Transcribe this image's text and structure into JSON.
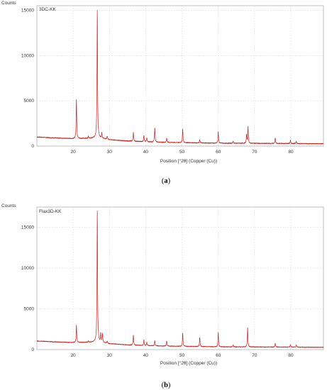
{
  "chart_data": [
    {
      "type": "line",
      "panel_caption": "(a)",
      "caption_open": "(",
      "caption_letter": "a",
      "caption_close": ")",
      "sample_label": "3DC-KK",
      "ylabel": "Counts",
      "xlabel": "Position [°2θ] (Copper (Cu))",
      "ylim": [
        0,
        15500
      ],
      "xlim": [
        10,
        89
      ],
      "yticks": [
        0,
        5000,
        10000,
        15000
      ],
      "xticks": [
        20,
        30,
        40,
        50,
        60,
        70,
        80
      ],
      "color": "#cc2222",
      "grid": "dashed",
      "baseline": [
        [
          10,
          1000
        ],
        [
          15,
          900
        ],
        [
          20,
          820
        ],
        [
          25,
          860
        ],
        [
          26,
          920
        ],
        [
          28,
          850
        ],
        [
          30,
          700
        ],
        [
          35,
          560
        ],
        [
          40,
          470
        ],
        [
          45,
          420
        ],
        [
          50,
          380
        ],
        [
          55,
          350
        ],
        [
          60,
          320
        ],
        [
          70,
          300
        ],
        [
          80,
          280
        ],
        [
          89,
          260
        ]
      ],
      "peaks": [
        {
          "x": 20.9,
          "y": 5200
        },
        {
          "x": 24.2,
          "y": 1100
        },
        {
          "x": 26.65,
          "y": 15000
        },
        {
          "x": 27.9,
          "y": 1450
        },
        {
          "x": 29.4,
          "y": 1100
        },
        {
          "x": 36.6,
          "y": 1550
        },
        {
          "x": 39.5,
          "y": 1200
        },
        {
          "x": 40.3,
          "y": 950
        },
        {
          "x": 42.5,
          "y": 2050
        },
        {
          "x": 45.8,
          "y": 900
        },
        {
          "x": 50.2,
          "y": 1900
        },
        {
          "x": 54.9,
          "y": 700
        },
        {
          "x": 60.0,
          "y": 1600
        },
        {
          "x": 64.1,
          "y": 550
        },
        {
          "x": 67.8,
          "y": 1300
        },
        {
          "x": 68.2,
          "y": 2100
        },
        {
          "x": 75.7,
          "y": 900
        },
        {
          "x": 79.9,
          "y": 650
        },
        {
          "x": 81.5,
          "y": 550
        }
      ]
    },
    {
      "type": "line",
      "panel_caption": "(b)",
      "caption_open": "(",
      "caption_letter": "b",
      "caption_close": ")",
      "sample_label": "Flax3D-KK",
      "ylabel": "Counts",
      "xlabel": "Position [°2θ] (Copper (Cu))",
      "ylim": [
        0,
        17500
      ],
      "xlim": [
        10,
        89
      ],
      "yticks": [
        0,
        5000,
        10000,
        15000
      ],
      "xticks": [
        20,
        30,
        40,
        50,
        60,
        70,
        80
      ],
      "color": "#cc2222",
      "grid": "dashed",
      "baseline": [
        [
          10,
          1050
        ],
        [
          15,
          950
        ],
        [
          20,
          860
        ],
        [
          25,
          900
        ],
        [
          26,
          960
        ],
        [
          28,
          880
        ],
        [
          30,
          720
        ],
        [
          35,
          580
        ],
        [
          40,
          490
        ],
        [
          45,
          440
        ],
        [
          50,
          400
        ],
        [
          55,
          370
        ],
        [
          60,
          340
        ],
        [
          70,
          320
        ],
        [
          80,
          300
        ],
        [
          89,
          280
        ]
      ],
      "peaks": [
        {
          "x": 20.9,
          "y": 3000
        },
        {
          "x": 24.2,
          "y": 1050
        },
        {
          "x": 26.65,
          "y": 17000
        },
        {
          "x": 27.6,
          "y": 1950
        },
        {
          "x": 28.1,
          "y": 1900
        },
        {
          "x": 29.4,
          "y": 1000
        },
        {
          "x": 36.6,
          "y": 1800
        },
        {
          "x": 39.5,
          "y": 1200
        },
        {
          "x": 40.3,
          "y": 900
        },
        {
          "x": 42.5,
          "y": 1100
        },
        {
          "x": 45.8,
          "y": 1100
        },
        {
          "x": 50.2,
          "y": 2000
        },
        {
          "x": 54.9,
          "y": 1500
        },
        {
          "x": 60.0,
          "y": 2100
        },
        {
          "x": 64.1,
          "y": 600
        },
        {
          "x": 68.1,
          "y": 2700
        },
        {
          "x": 75.7,
          "y": 800
        },
        {
          "x": 79.9,
          "y": 650
        },
        {
          "x": 81.5,
          "y": 600
        }
      ]
    }
  ]
}
